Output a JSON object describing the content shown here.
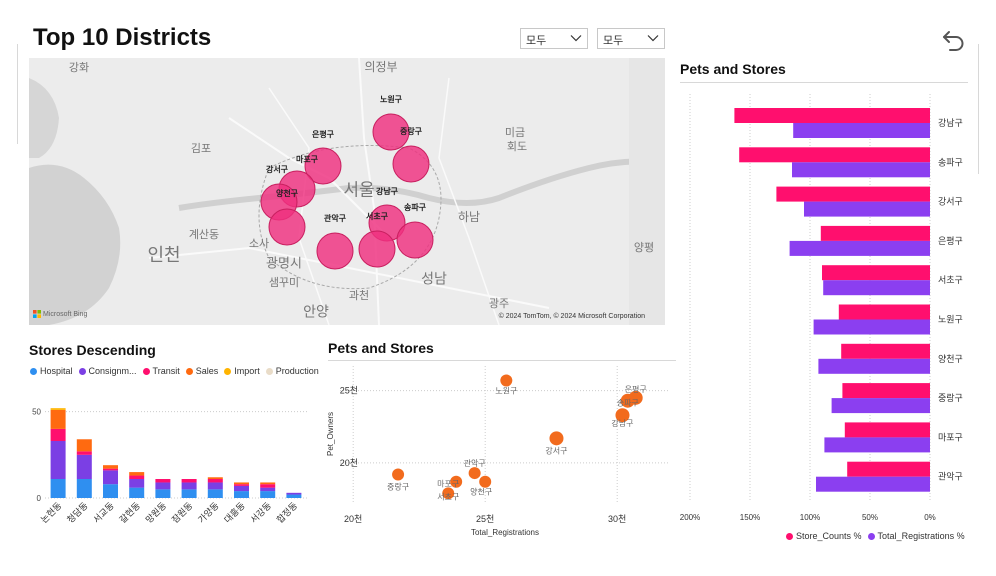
{
  "page": {
    "title": "Top 10 Districts",
    "slicers": [
      {
        "value": "모두"
      },
      {
        "value": "모두"
      }
    ],
    "back_icon": "undo-arrow-icon"
  },
  "map": {
    "attribution": "© 2024 TomTom, © 2024 Microsoft Corporation",
    "logo": "Microsoft Bing",
    "place_labels": [
      {
        "text": "강화"
      },
      {
        "text": "의정부"
      },
      {
        "text": "김포"
      },
      {
        "text": "미금"
      },
      {
        "text": "회도"
      },
      {
        "text": "서울"
      },
      {
        "text": "계산동"
      },
      {
        "text": "인천"
      },
      {
        "text": "소사"
      },
      {
        "text": "하남"
      },
      {
        "text": "광명시"
      },
      {
        "text": "샘꾸미"
      },
      {
        "text": "양평"
      },
      {
        "text": "성남"
      },
      {
        "text": "과천"
      },
      {
        "text": "안양"
      },
      {
        "text": "광주"
      }
    ],
    "bubbles": [
      {
        "district": "노원구"
      },
      {
        "district": "중랑구"
      },
      {
        "district": "은평구"
      },
      {
        "district": "마포구"
      },
      {
        "district": "강서구"
      },
      {
        "district": "양천구"
      },
      {
        "district": "강남구"
      },
      {
        "district": "송파구"
      },
      {
        "district": "서초구"
      },
      {
        "district": "관악구"
      }
    ]
  },
  "colors": {
    "hospital": "#2f8ff0",
    "consignment": "#7b3fe4",
    "transit": "#ff0f6e",
    "sales": "#ff6a10",
    "import": "#ffb400",
    "production": "#e9dcc8",
    "bubble": "#ef2f7f",
    "scatter": "#f26b1d",
    "store_counts": "#ff0f6e",
    "total_regs": "#8b3ff0"
  },
  "chart_data": [
    {
      "type": "bar",
      "stacked": true,
      "title": "Stores Descending",
      "categories": [
        "논현동",
        "청담동",
        "서교동",
        "갈현동",
        "망원동",
        "잠원동",
        "가양동",
        "대흥동",
        "서강동",
        "합정동"
      ],
      "series": [
        {
          "name": "Hospital",
          "values": [
            11,
            11,
            8,
            6,
            5,
            5,
            5,
            4,
            4,
            2
          ]
        },
        {
          "name": "Consignm...",
          "values": [
            22,
            14,
            8,
            5,
            4,
            4,
            4,
            3,
            2,
            1
          ]
        },
        {
          "name": "Transit",
          "values": [
            7,
            2,
            1,
            2,
            2,
            2,
            2,
            1,
            2,
            0
          ]
        },
        {
          "name": "Sales",
          "values": [
            11,
            7,
            2,
            2,
            0,
            0,
            1,
            1,
            1,
            0
          ]
        },
        {
          "name": "Import",
          "values": [
            1,
            0,
            0,
            0,
            0,
            0,
            0,
            0,
            0,
            0
          ]
        },
        {
          "name": "Production",
          "values": [
            0,
            0,
            0,
            0,
            0,
            0,
            0,
            0,
            0,
            0
          ]
        }
      ],
      "y_ticks": [
        "0",
        "50"
      ],
      "ylim": [
        0,
        55
      ],
      "legend": "top",
      "grid": true
    },
    {
      "type": "scatter",
      "title": "Pets and Stores",
      "xlabel": "Total_Registrations",
      "ylabel": "Pet_Owners",
      "x_ticks": [
        "20천",
        "25천",
        "30천"
      ],
      "y_ticks": [
        "20천",
        "25천"
      ],
      "xlim": [
        19500,
        32000
      ],
      "ylim": [
        17300,
        26700
      ],
      "points": [
        {
          "label": "노원구",
          "x": 25800,
          "y": 25700
        },
        {
          "label": "은평구",
          "x": 30700,
          "y": 24500
        },
        {
          "label": "송파구",
          "x": 30400,
          "y": 24300
        },
        {
          "label": "강남구",
          "x": 30200,
          "y": 23300
        },
        {
          "label": "강서구",
          "x": 27700,
          "y": 21700
        },
        {
          "label": "중랑구",
          "x": 21700,
          "y": 19200
        },
        {
          "label": "관악구",
          "x": 24600,
          "y": 19300
        },
        {
          "label": "양천구",
          "x": 25000,
          "y": 18700
        },
        {
          "label": "마포구",
          "x": 23900,
          "y": 18700
        },
        {
          "label": "서초구",
          "x": 23600,
          "y": 17900
        }
      ],
      "grid": true
    },
    {
      "type": "bar",
      "orientation": "horizontal",
      "title": "Pets and Stores",
      "categories": [
        "강남구",
        "송파구",
        "강서구",
        "은평구",
        "서초구",
        "노원구",
        "양천구",
        "중랑구",
        "마포구",
        "관악구"
      ],
      "series": [
        {
          "name": "Store_Counts %",
          "values": [
            163,
            159,
            128,
            91,
            90,
            76,
            74,
            73,
            71,
            69
          ]
        },
        {
          "name": "Total_Registrations %",
          "values": [
            114,
            115,
            105,
            117,
            89,
            97,
            93,
            82,
            88,
            95
          ]
        }
      ],
      "x_ticks": [
        "200%",
        "150%",
        "100%",
        "50%",
        "0%"
      ],
      "xlim": [
        0,
        200
      ],
      "reversed_axis": true,
      "legend": "bottom-right",
      "grid": true
    }
  ]
}
